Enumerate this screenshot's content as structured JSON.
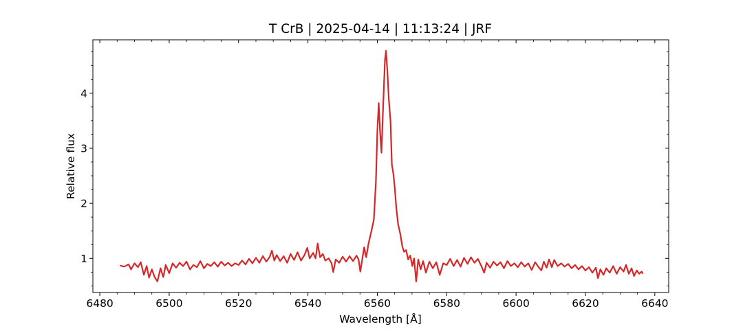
{
  "chart_data": {
    "type": "line",
    "title": "T CrB | 2025-04-14 | 11:13:24 | JRF",
    "xlabel": "Wavelength [Å]",
    "ylabel": "Relative flux",
    "xlim": [
      6478,
      6644
    ],
    "ylim": [
      0.38,
      4.97
    ],
    "xticks": [
      6480,
      6500,
      6520,
      6540,
      6560,
      6580,
      6600,
      6620,
      6640
    ],
    "yticks": [
      1,
      2,
      3,
      4
    ],
    "x_minor_step": 5,
    "y_minor_step": 0.25,
    "grid": false,
    "series": [
      {
        "color": "#d62728",
        "points": [
          [
            6485.8,
            0.87
          ],
          [
            6487.0,
            0.85
          ],
          [
            6488.3,
            0.89
          ],
          [
            6489.0,
            0.8
          ],
          [
            6490.0,
            0.91
          ],
          [
            6491.0,
            0.84
          ],
          [
            6491.8,
            0.93
          ],
          [
            6492.7,
            0.7
          ],
          [
            6493.5,
            0.86
          ],
          [
            6494.2,
            0.65
          ],
          [
            6495.0,
            0.8
          ],
          [
            6495.8,
            0.66
          ],
          [
            6496.6,
            0.58
          ],
          [
            6497.5,
            0.82
          ],
          [
            6498.3,
            0.66
          ],
          [
            6499.0,
            0.88
          ],
          [
            6500.0,
            0.73
          ],
          [
            6501.0,
            0.91
          ],
          [
            6502.0,
            0.83
          ],
          [
            6503.0,
            0.92
          ],
          [
            6504.0,
            0.86
          ],
          [
            6505.0,
            0.94
          ],
          [
            6506.0,
            0.8
          ],
          [
            6507.0,
            0.88
          ],
          [
            6508.0,
            0.84
          ],
          [
            6509.0,
            0.95
          ],
          [
            6510.0,
            0.82
          ],
          [
            6511.0,
            0.9
          ],
          [
            6512.0,
            0.86
          ],
          [
            6513.0,
            0.93
          ],
          [
            6514.0,
            0.85
          ],
          [
            6515.0,
            0.94
          ],
          [
            6516.0,
            0.87
          ],
          [
            6517.0,
            0.92
          ],
          [
            6518.0,
            0.86
          ],
          [
            6519.0,
            0.91
          ],
          [
            6520.0,
            0.88
          ],
          [
            6521.0,
            0.96
          ],
          [
            6522.0,
            0.89
          ],
          [
            6523.0,
            0.99
          ],
          [
            6524.0,
            0.91
          ],
          [
            6525.0,
            1.01
          ],
          [
            6526.0,
            0.92
          ],
          [
            6527.0,
            1.04
          ],
          [
            6528.0,
            0.94
          ],
          [
            6529.0,
            1.03
          ],
          [
            6529.6,
            1.14
          ],
          [
            6530.3,
            0.96
          ],
          [
            6531.0,
            1.06
          ],
          [
            6532.0,
            0.95
          ],
          [
            6533.0,
            1.04
          ],
          [
            6534.0,
            0.92
          ],
          [
            6535.0,
            1.08
          ],
          [
            6536.0,
            0.97
          ],
          [
            6537.0,
            1.11
          ],
          [
            6538.0,
            0.96
          ],
          [
            6539.0,
            1.06
          ],
          [
            6539.8,
            1.19
          ],
          [
            6540.5,
            1.0
          ],
          [
            6541.5,
            1.1
          ],
          [
            6542.2,
            1.0
          ],
          [
            6542.8,
            1.27
          ],
          [
            6543.5,
            1.02
          ],
          [
            6544.3,
            1.08
          ],
          [
            6545.0,
            0.96
          ],
          [
            6546.0,
            1.0
          ],
          [
            6546.8,
            0.91
          ],
          [
            6547.3,
            0.75
          ],
          [
            6548.0,
            0.98
          ],
          [
            6549.0,
            0.92
          ],
          [
            6550.0,
            1.03
          ],
          [
            6551.0,
            0.94
          ],
          [
            6552.0,
            1.04
          ],
          [
            6553.0,
            0.95
          ],
          [
            6554.0,
            1.05
          ],
          [
            6554.6,
            0.98
          ],
          [
            6555.1,
            0.76
          ],
          [
            6555.7,
            1.0
          ],
          [
            6556.2,
            1.2
          ],
          [
            6556.8,
            1.02
          ],
          [
            6557.5,
            1.28
          ],
          [
            6558.2,
            1.47
          ],
          [
            6559.0,
            1.7
          ],
          [
            6559.6,
            2.4
          ],
          [
            6560.0,
            3.3
          ],
          [
            6560.4,
            3.82
          ],
          [
            6560.8,
            3.3
          ],
          [
            6561.2,
            2.92
          ],
          [
            6561.7,
            3.8
          ],
          [
            6562.2,
            4.6
          ],
          [
            6562.5,
            4.77
          ],
          [
            6562.9,
            4.4
          ],
          [
            6563.3,
            3.9
          ],
          [
            6563.8,
            3.5
          ],
          [
            6564.2,
            2.7
          ],
          [
            6564.6,
            2.55
          ],
          [
            6565.0,
            2.3
          ],
          [
            6565.5,
            1.9
          ],
          [
            6566.0,
            1.62
          ],
          [
            6566.6,
            1.45
          ],
          [
            6567.2,
            1.22
          ],
          [
            6567.7,
            1.12
          ],
          [
            6568.3,
            1.15
          ],
          [
            6568.9,
            0.98
          ],
          [
            6569.5,
            1.05
          ],
          [
            6570.1,
            0.86
          ],
          [
            6570.6,
            1.0
          ],
          [
            6571.2,
            0.58
          ],
          [
            6571.8,
            0.98
          ],
          [
            6572.5,
            0.8
          ],
          [
            6573.2,
            0.95
          ],
          [
            6574.0,
            0.74
          ],
          [
            6575.0,
            0.94
          ],
          [
            6576.0,
            0.82
          ],
          [
            6577.0,
            0.93
          ],
          [
            6578.0,
            0.7
          ],
          [
            6579.0,
            0.91
          ],
          [
            6580.0,
            0.88
          ],
          [
            6581.0,
            0.99
          ],
          [
            6582.0,
            0.86
          ],
          [
            6583.0,
            0.97
          ],
          [
            6584.0,
            0.85
          ],
          [
            6585.0,
            1.01
          ],
          [
            6586.0,
            0.9
          ],
          [
            6587.0,
            1.02
          ],
          [
            6588.0,
            0.92
          ],
          [
            6589.0,
            0.99
          ],
          [
            6590.0,
            0.86
          ],
          [
            6590.8,
            0.74
          ],
          [
            6591.5,
            0.92
          ],
          [
            6592.5,
            0.83
          ],
          [
            6593.5,
            0.94
          ],
          [
            6594.5,
            0.87
          ],
          [
            6595.5,
            0.93
          ],
          [
            6596.5,
            0.82
          ],
          [
            6597.5,
            0.95
          ],
          [
            6598.5,
            0.86
          ],
          [
            6599.5,
            0.91
          ],
          [
            6600.5,
            0.84
          ],
          [
            6601.5,
            0.93
          ],
          [
            6602.5,
            0.85
          ],
          [
            6603.5,
            0.91
          ],
          [
            6604.5,
            0.79
          ],
          [
            6605.5,
            0.93
          ],
          [
            6606.5,
            0.84
          ],
          [
            6607.3,
            0.78
          ],
          [
            6608.0,
            0.94
          ],
          [
            6608.8,
            0.83
          ],
          [
            6609.5,
            0.98
          ],
          [
            6610.3,
            0.84
          ],
          [
            6611.0,
            0.97
          ],
          [
            6612.0,
            0.86
          ],
          [
            6613.0,
            0.91
          ],
          [
            6614.0,
            0.85
          ],
          [
            6615.0,
            0.9
          ],
          [
            6616.0,
            0.82
          ],
          [
            6617.0,
            0.88
          ],
          [
            6618.0,
            0.8
          ],
          [
            6619.0,
            0.86
          ],
          [
            6620.0,
            0.78
          ],
          [
            6621.0,
            0.84
          ],
          [
            6622.0,
            0.74
          ],
          [
            6623.0,
            0.83
          ],
          [
            6623.6,
            0.64
          ],
          [
            6624.3,
            0.8
          ],
          [
            6625.2,
            0.7
          ],
          [
            6626.0,
            0.82
          ],
          [
            6627.0,
            0.74
          ],
          [
            6628.0,
            0.86
          ],
          [
            6629.0,
            0.72
          ],
          [
            6630.0,
            0.84
          ],
          [
            6631.0,
            0.76
          ],
          [
            6631.7,
            0.88
          ],
          [
            6632.5,
            0.72
          ],
          [
            6633.3,
            0.82
          ],
          [
            6634.0,
            0.68
          ],
          [
            6634.8,
            0.78
          ],
          [
            6635.5,
            0.72
          ],
          [
            6636.2,
            0.76
          ],
          [
            6636.5,
            0.72
          ]
        ]
      }
    ]
  }
}
